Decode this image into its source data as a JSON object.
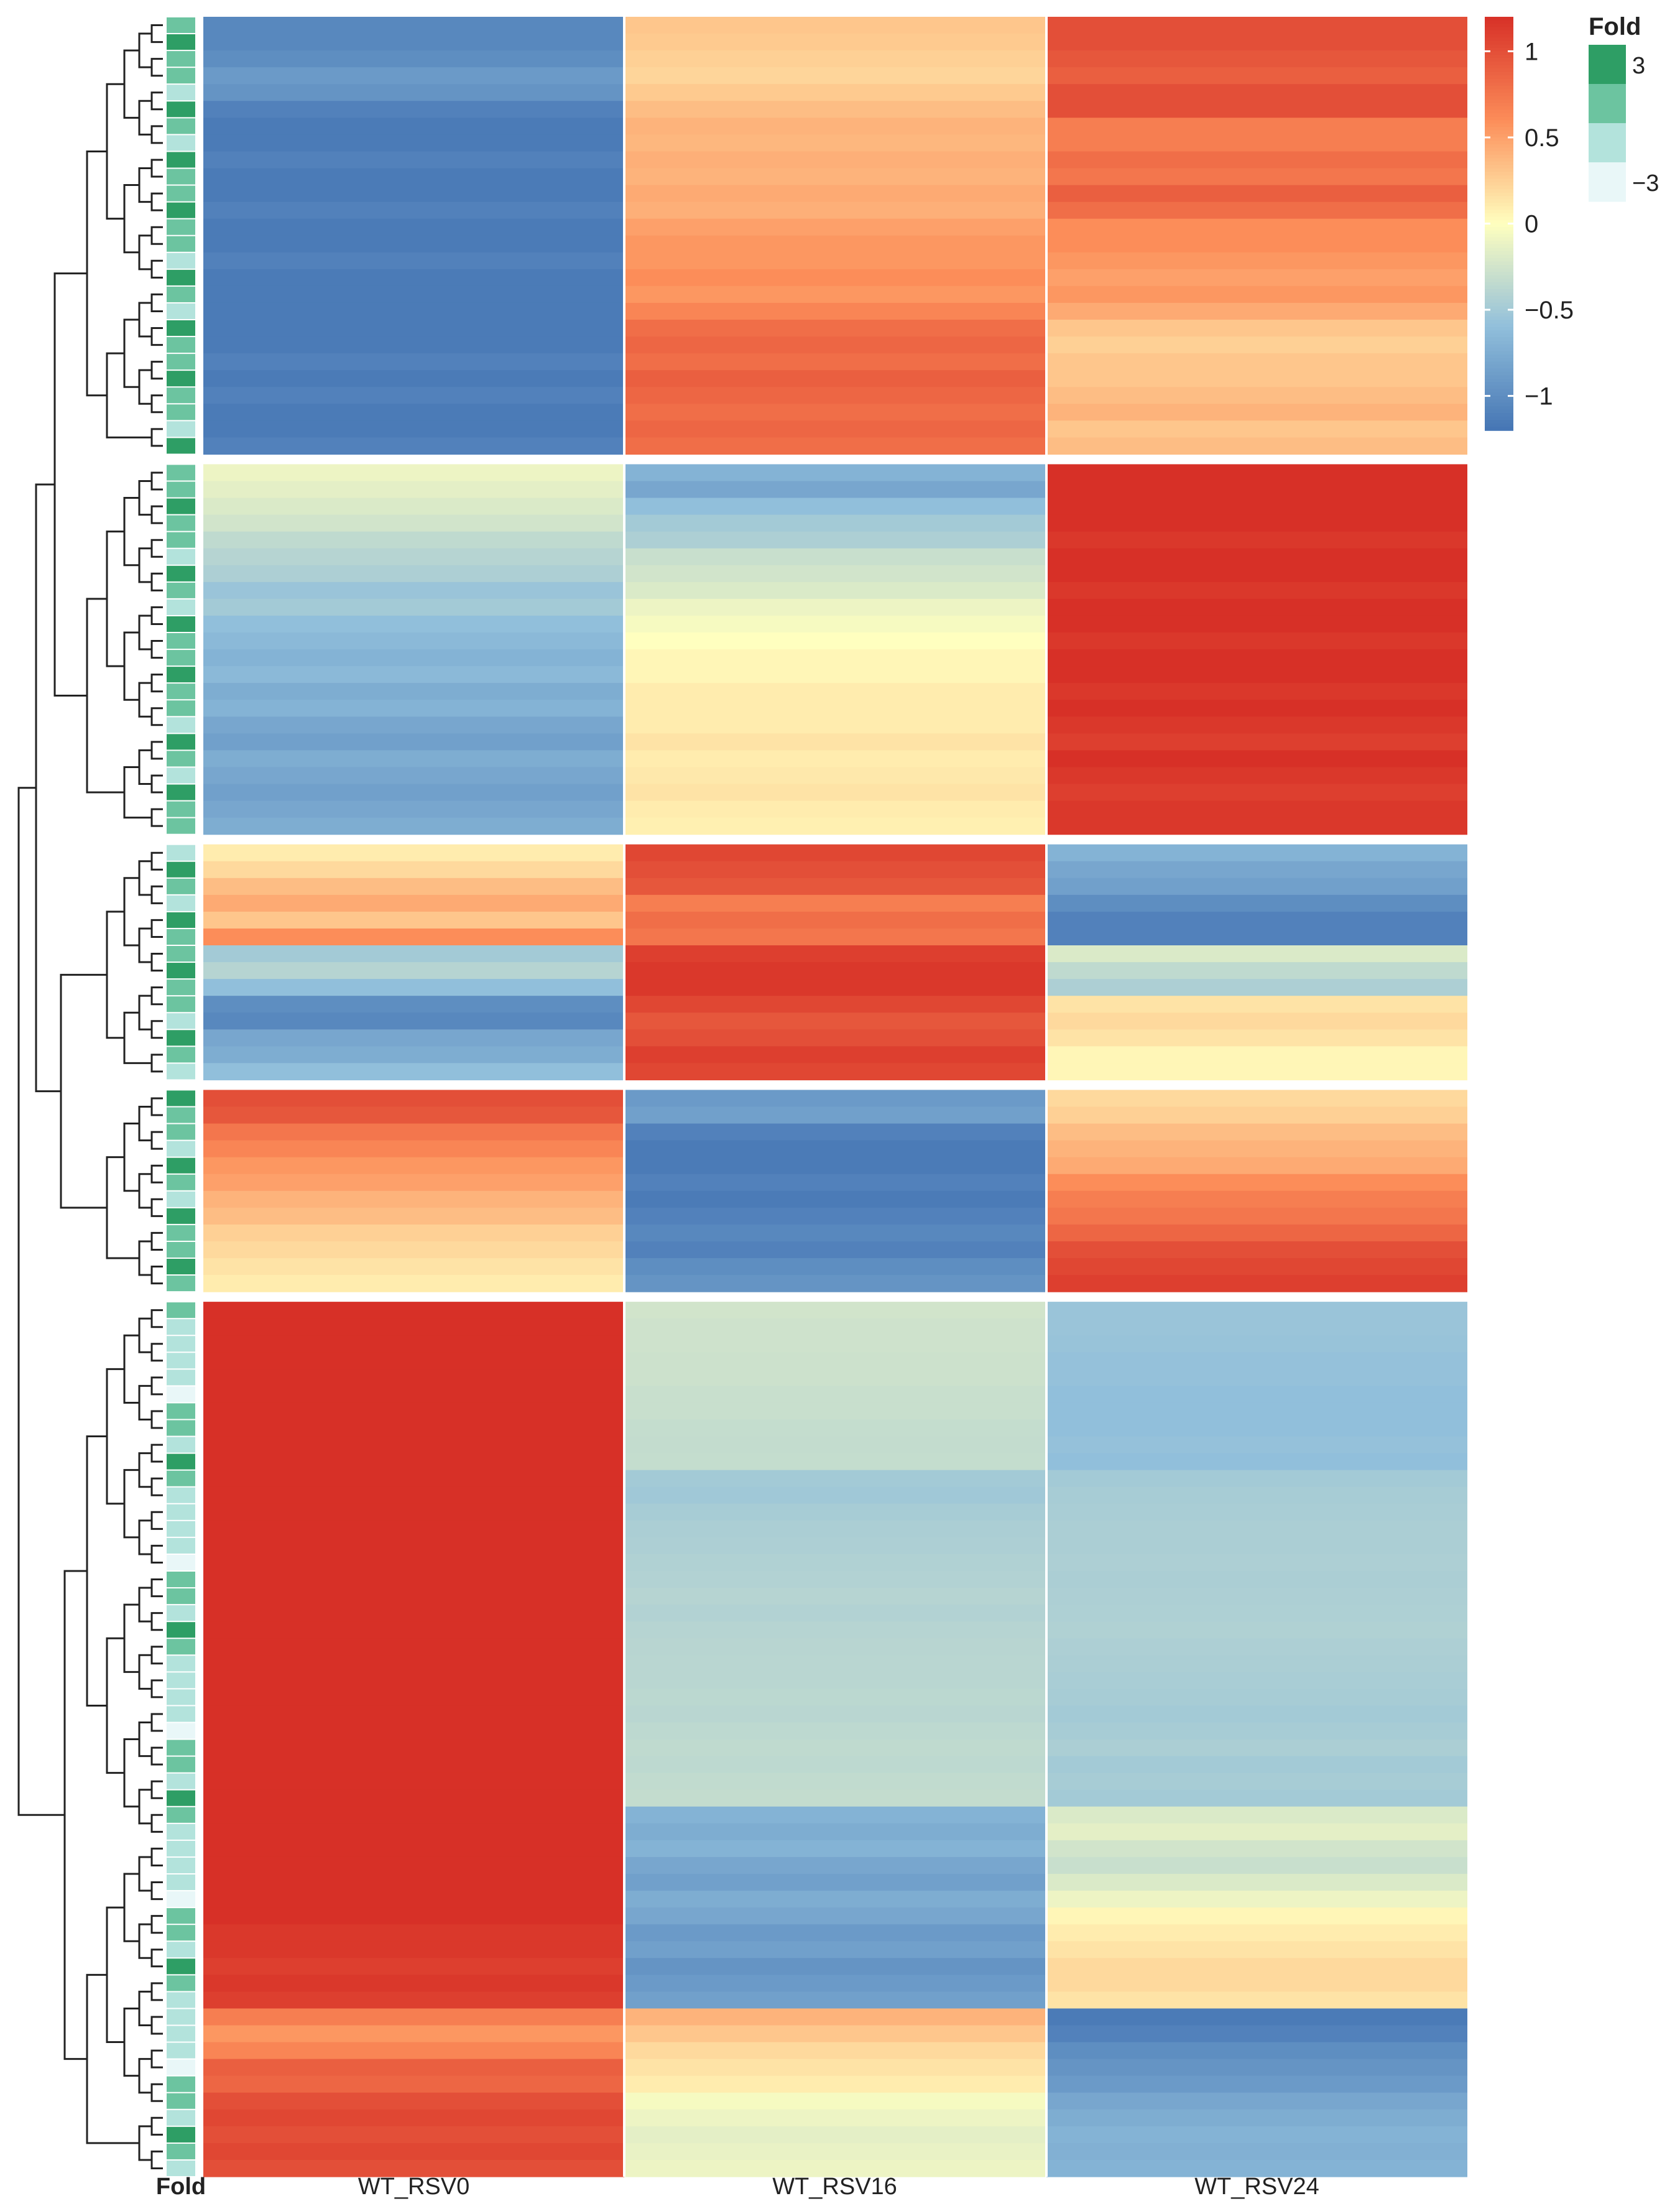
{
  "chart_data": {
    "type": "heatmap",
    "title": "",
    "columns": [
      "WT_RSV0",
      "WT_RSV16",
      "WT_RSV24"
    ],
    "annotation_column_label": "Fold",
    "value_range": [
      -1.2,
      1.2
    ],
    "color_scale": {
      "title": "",
      "ticks": [
        1,
        0.5,
        0,
        -0.5,
        -1
      ],
      "tick_labels": [
        "1",
        "0.5",
        "0",
        "−0.5",
        "−1"
      ],
      "stops": [
        {
          "v": -1.2,
          "color": "#4575b4"
        },
        {
          "v": -0.6,
          "color": "#91bfdb"
        },
        {
          "v": 0,
          "color": "#ffffbf"
        },
        {
          "v": 0.6,
          "color": "#fc8d59"
        },
        {
          "v": 1.2,
          "color": "#d73027"
        }
      ]
    },
    "fold_legend": {
      "title": "Fold",
      "levels": [
        3,
        1,
        -1,
        -3
      ],
      "colors": [
        "#2e9e65",
        "#6cc4a0",
        "#b3e3dc",
        "#e9f7f8"
      ],
      "tick_labels": [
        "3",
        "−3"
      ]
    },
    "clusters": [
      {
        "name": "cluster-1",
        "rows": [
          [
            -1.05,
            0.3,
            1.0
          ],
          [
            -1.05,
            0.28,
            1.0
          ],
          [
            -1.0,
            0.25,
            0.95
          ],
          [
            -0.9,
            0.22,
            0.9
          ],
          [
            -0.95,
            0.28,
            1.0
          ],
          [
            -1.1,
            0.35,
            1.0
          ],
          [
            -1.15,
            0.4,
            0.7
          ],
          [
            -1.15,
            0.38,
            0.7
          ],
          [
            -1.1,
            0.42,
            0.8
          ],
          [
            -1.15,
            0.4,
            0.75
          ],
          [
            -1.15,
            0.45,
            0.9
          ],
          [
            -1.1,
            0.42,
            0.8
          ],
          [
            -1.15,
            0.5,
            0.6
          ],
          [
            -1.15,
            0.55,
            0.6
          ],
          [
            -1.1,
            0.55,
            0.55
          ],
          [
            -1.15,
            0.6,
            0.5
          ],
          [
            -1.15,
            0.55,
            0.55
          ],
          [
            -1.15,
            0.65,
            0.45
          ],
          [
            -1.15,
            0.8,
            0.3
          ],
          [
            -1.15,
            0.85,
            0.25
          ],
          [
            -1.1,
            0.8,
            0.3
          ],
          [
            -1.15,
            0.9,
            0.3
          ],
          [
            -1.1,
            0.85,
            0.35
          ],
          [
            -1.15,
            0.8,
            0.4
          ],
          [
            -1.15,
            0.85,
            0.3
          ],
          [
            -1.1,
            0.8,
            0.35
          ]
        ]
      },
      {
        "name": "cluster-2",
        "rows": [
          [
            -0.1,
            -0.7,
            1.2
          ],
          [
            -0.15,
            -0.8,
            1.2
          ],
          [
            -0.2,
            -0.6,
            1.2
          ],
          [
            -0.25,
            -0.5,
            1.2
          ],
          [
            -0.35,
            -0.45,
            1.15
          ],
          [
            -0.4,
            -0.3,
            1.2
          ],
          [
            -0.45,
            -0.25,
            1.2
          ],
          [
            -0.55,
            -0.2,
            1.15
          ],
          [
            -0.5,
            -0.1,
            1.2
          ],
          [
            -0.6,
            -0.05,
            1.2
          ],
          [
            -0.65,
            0.0,
            1.15
          ],
          [
            -0.7,
            0.05,
            1.2
          ],
          [
            -0.65,
            0.05,
            1.2
          ],
          [
            -0.75,
            0.1,
            1.15
          ],
          [
            -0.7,
            0.1,
            1.2
          ],
          [
            -0.8,
            0.1,
            1.15
          ],
          [
            -0.85,
            0.15,
            1.1
          ],
          [
            -0.75,
            0.1,
            1.2
          ],
          [
            -0.8,
            0.12,
            1.15
          ],
          [
            -0.85,
            0.15,
            1.1
          ],
          [
            -0.8,
            0.1,
            1.15
          ],
          [
            -0.75,
            0.08,
            1.15
          ]
        ]
      },
      {
        "name": "cluster-3",
        "rows": [
          [
            0.1,
            1.05,
            -0.7
          ],
          [
            0.2,
            1.0,
            -0.8
          ],
          [
            0.35,
            0.95,
            -0.85
          ],
          [
            0.45,
            0.7,
            -1.0
          ],
          [
            0.3,
            0.8,
            -1.1
          ],
          [
            0.6,
            0.75,
            -1.1
          ],
          [
            -0.5,
            1.1,
            -0.2
          ],
          [
            -0.4,
            1.15,
            -0.35
          ],
          [
            -0.6,
            1.15,
            -0.45
          ],
          [
            -1.0,
            1.05,
            0.15
          ],
          [
            -1.05,
            0.95,
            0.2
          ],
          [
            -0.8,
            1.0,
            0.15
          ],
          [
            -0.75,
            1.1,
            0.05
          ],
          [
            -0.6,
            1.05,
            0.05
          ]
        ]
      },
      {
        "name": "cluster-4",
        "rows": [
          [
            1.0,
            -0.9,
            0.2
          ],
          [
            0.95,
            -0.85,
            0.25
          ],
          [
            0.75,
            -1.1,
            0.35
          ],
          [
            0.65,
            -1.15,
            0.4
          ],
          [
            0.55,
            -1.15,
            0.45
          ],
          [
            0.5,
            -1.1,
            0.6
          ],
          [
            0.4,
            -1.15,
            0.7
          ],
          [
            0.35,
            -1.1,
            0.75
          ],
          [
            0.25,
            -1.05,
            0.85
          ],
          [
            0.2,
            -1.1,
            1.0
          ],
          [
            0.15,
            -1.0,
            1.05
          ],
          [
            0.1,
            -0.95,
            1.1
          ]
        ]
      },
      {
        "name": "cluster-5",
        "rows": [
          [
            1.2,
            -0.25,
            -0.55
          ],
          [
            1.2,
            -0.27,
            -0.55
          ],
          [
            1.2,
            -0.27,
            -0.56
          ],
          [
            1.2,
            -0.28,
            -0.58
          ],
          [
            1.2,
            -0.28,
            -0.58
          ],
          [
            1.2,
            -0.3,
            -0.6
          ],
          [
            1.2,
            -0.3,
            -0.6
          ],
          [
            1.2,
            -0.32,
            -0.6
          ],
          [
            1.2,
            -0.33,
            -0.58
          ],
          [
            1.2,
            -0.32,
            -0.6
          ],
          [
            1.2,
            -0.5,
            -0.5
          ],
          [
            1.2,
            -0.52,
            -0.48
          ],
          [
            1.2,
            -0.48,
            -0.47
          ],
          [
            1.2,
            -0.46,
            -0.46
          ],
          [
            1.2,
            -0.45,
            -0.46
          ],
          [
            1.2,
            -0.43,
            -0.45
          ],
          [
            1.2,
            -0.42,
            -0.46
          ],
          [
            1.2,
            -0.4,
            -0.45
          ],
          [
            1.2,
            -0.42,
            -0.44
          ],
          [
            1.2,
            -0.4,
            -0.43
          ],
          [
            1.2,
            -0.39,
            -0.45
          ],
          [
            1.2,
            -0.38,
            -0.46
          ],
          [
            1.2,
            -0.38,
            -0.47
          ],
          [
            1.2,
            -0.37,
            -0.48
          ],
          [
            1.2,
            -0.38,
            -0.5
          ],
          [
            1.2,
            -0.36,
            -0.48
          ],
          [
            1.2,
            -0.35,
            -0.46
          ],
          [
            1.2,
            -0.36,
            -0.5
          ],
          [
            1.2,
            -0.34,
            -0.48
          ],
          [
            1.2,
            -0.33,
            -0.5
          ],
          [
            1.2,
            -0.7,
            -0.2
          ],
          [
            1.2,
            -0.75,
            -0.15
          ],
          [
            1.2,
            -0.7,
            -0.25
          ],
          [
            1.2,
            -0.8,
            -0.3
          ],
          [
            1.2,
            -0.85,
            -0.2
          ],
          [
            1.2,
            -0.75,
            -0.1
          ],
          [
            1.2,
            -0.8,
            0.05
          ],
          [
            1.15,
            -0.9,
            0.1
          ],
          [
            1.15,
            -0.85,
            0.15
          ],
          [
            1.1,
            -0.95,
            0.2
          ],
          [
            1.15,
            -0.9,
            0.2
          ],
          [
            1.1,
            -0.85,
            0.15
          ],
          [
            0.7,
            0.4,
            -1.15
          ],
          [
            0.55,
            0.3,
            -1.1
          ],
          [
            0.65,
            0.2,
            -1.0
          ],
          [
            0.9,
            0.15,
            -0.95
          ],
          [
            0.85,
            0.1,
            -0.9
          ],
          [
            1.0,
            -0.05,
            -0.8
          ],
          [
            1.05,
            -0.1,
            -0.75
          ],
          [
            1.0,
            -0.15,
            -0.7
          ],
          [
            1.05,
            -0.12,
            -0.72
          ],
          [
            1.0,
            -0.1,
            -0.7
          ]
        ]
      }
    ]
  }
}
